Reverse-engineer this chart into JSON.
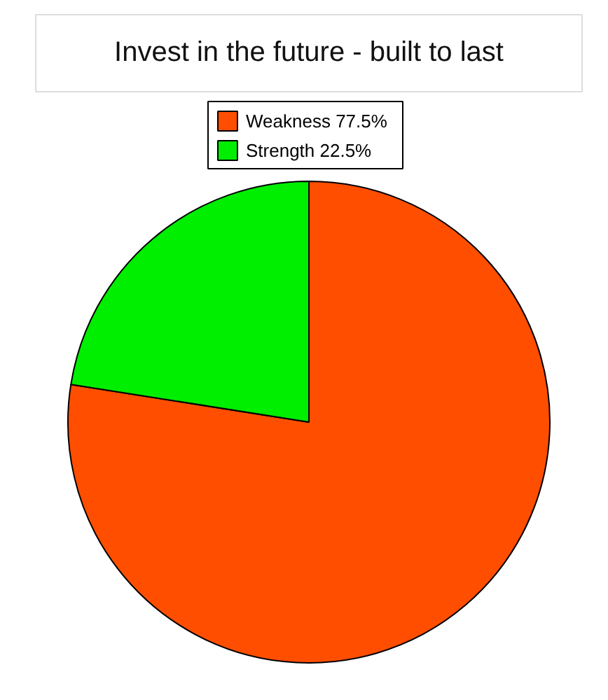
{
  "chart_data": {
    "type": "pie",
    "title": "Invest in the future - built to last",
    "categories": [
      "Weakness",
      "Strength"
    ],
    "values": [
      77.5,
      22.5
    ],
    "value_labels": [
      "77.5%",
      "22.5%"
    ],
    "colors": [
      "#ff4e00",
      "#00ee00"
    ],
    "legend": "top"
  }
}
